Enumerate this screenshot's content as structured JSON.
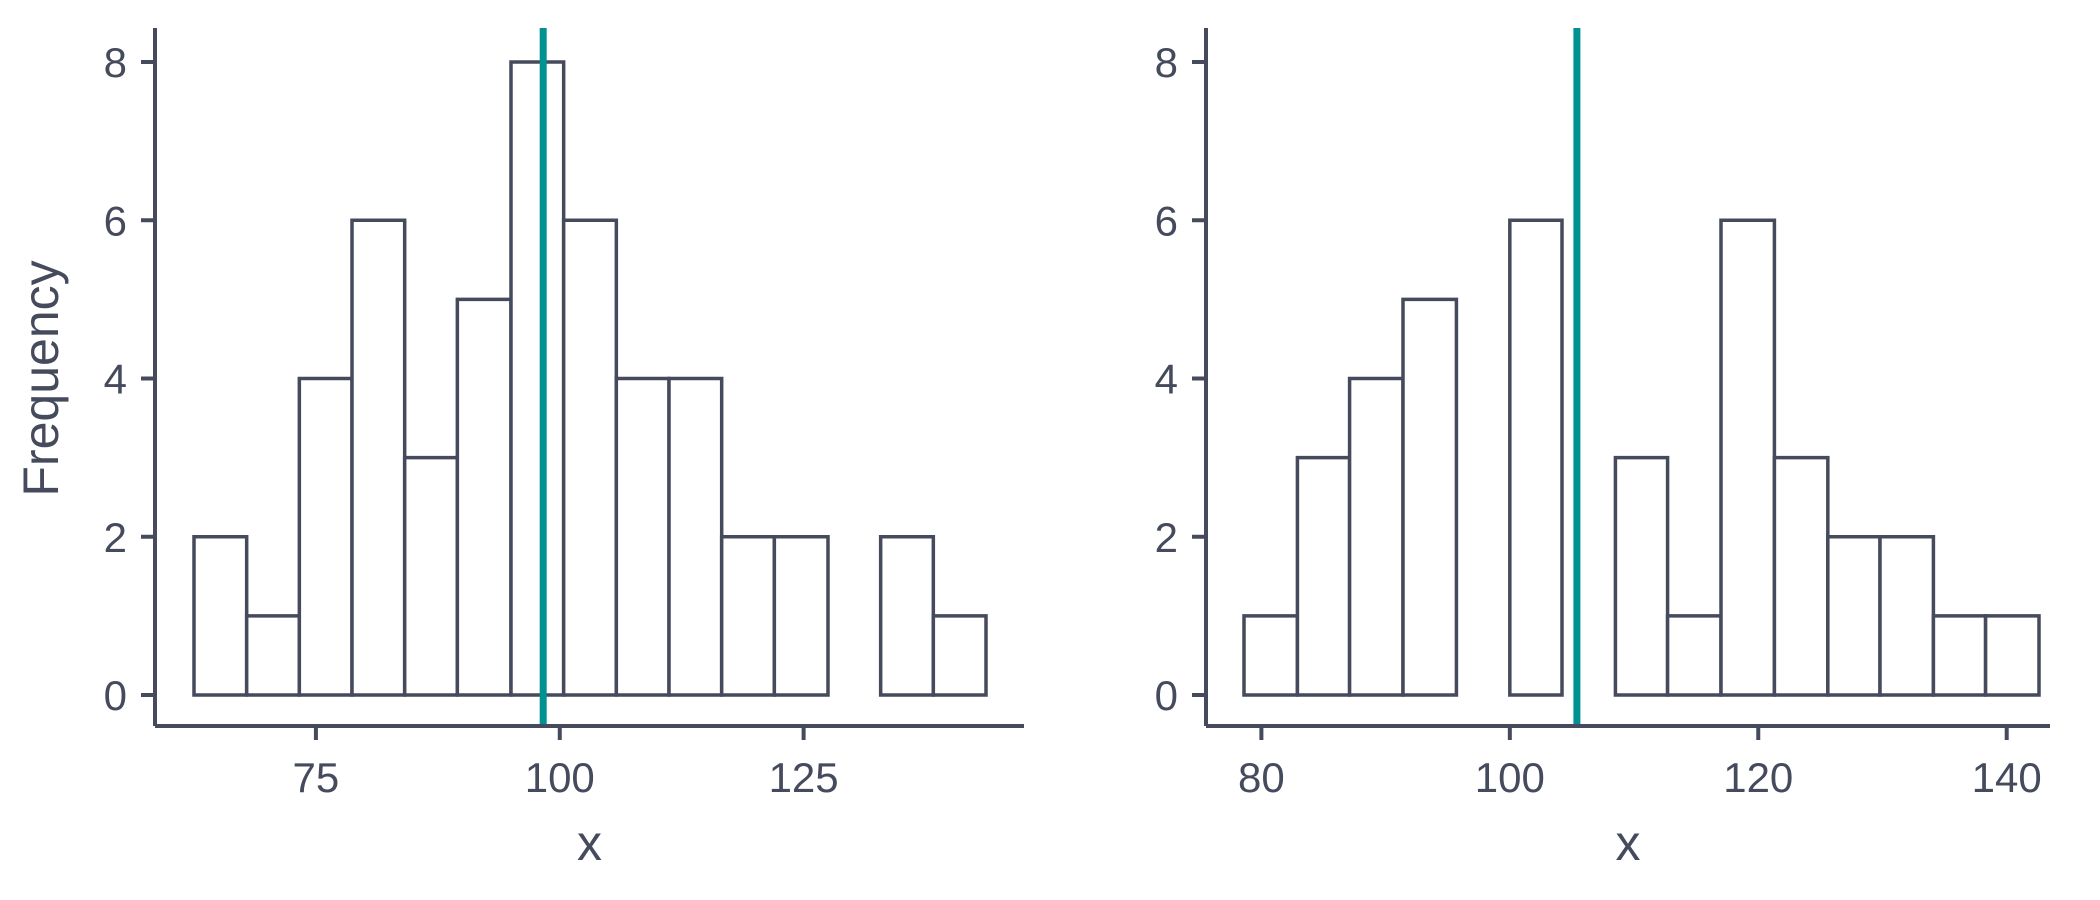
{
  "chart_data": [
    {
      "type": "histogram",
      "xlabel": "x",
      "ylabel": "Frequency",
      "xlim": [
        60,
        146
      ],
      "ylim": [
        0,
        8
      ],
      "x_ticks": [
        75,
        100,
        125
      ],
      "y_ticks": [
        0,
        2,
        4,
        6,
        8
      ],
      "bins": [
        {
          "start": 62.5,
          "end": 67.9,
          "count": 2
        },
        {
          "start": 67.9,
          "end": 73.3,
          "count": 1
        },
        {
          "start": 73.3,
          "end": 78.7,
          "count": 4
        },
        {
          "start": 78.7,
          "end": 84.1,
          "count": 6
        },
        {
          "start": 84.1,
          "end": 89.5,
          "count": 3
        },
        {
          "start": 89.5,
          "end": 95.0,
          "count": 5
        },
        {
          "start": 95.0,
          "end": 100.4,
          "count": 8
        },
        {
          "start": 100.4,
          "end": 105.8,
          "count": 6
        },
        {
          "start": 105.8,
          "end": 111.2,
          "count": 4
        },
        {
          "start": 111.2,
          "end": 116.6,
          "count": 4
        },
        {
          "start": 116.6,
          "end": 122.0,
          "count": 2
        },
        {
          "start": 122.0,
          "end": 127.5,
          "count": 2
        },
        {
          "start": 127.5,
          "end": 132.9,
          "count": 0
        },
        {
          "start": 132.9,
          "end": 138.3,
          "count": 2
        },
        {
          "start": 138.3,
          "end": 143.7,
          "count": 1
        }
      ],
      "vline": {
        "x": 98.3,
        "color": "#009292"
      }
    },
    {
      "type": "histogram",
      "xlabel": "x",
      "ylabel": "",
      "xlim": [
        76,
        143.6
      ],
      "ylim": [
        0,
        8
      ],
      "x_ticks": [
        80,
        100,
        120,
        140
      ],
      "y_ticks": [
        0,
        2,
        4,
        6,
        8
      ],
      "bins": [
        {
          "start": 78.6,
          "end": 82.9,
          "count": 1
        },
        {
          "start": 82.9,
          "end": 87.1,
          "count": 3
        },
        {
          "start": 87.1,
          "end": 91.4,
          "count": 4
        },
        {
          "start": 91.4,
          "end": 95.7,
          "count": 5
        },
        {
          "start": 95.7,
          "end": 100.0,
          "count": 0
        },
        {
          "start": 100.0,
          "end": 104.2,
          "count": 6
        },
        {
          "start": 104.2,
          "end": 108.5,
          "count": 0
        },
        {
          "start": 108.5,
          "end": 112.7,
          "count": 3
        },
        {
          "start": 112.7,
          "end": 117.0,
          "count": 1
        },
        {
          "start": 117.0,
          "end": 121.3,
          "count": 6
        },
        {
          "start": 121.3,
          "end": 125.6,
          "count": 3
        },
        {
          "start": 125.6,
          "end": 129.8,
          "count": 2
        },
        {
          "start": 129.8,
          "end": 134.1,
          "count": 2
        },
        {
          "start": 134.1,
          "end": 138.3,
          "count": 1
        },
        {
          "start": 138.3,
          "end": 142.6,
          "count": 1
        }
      ],
      "vline": {
        "x": 105.4,
        "color": "#009292"
      }
    }
  ]
}
